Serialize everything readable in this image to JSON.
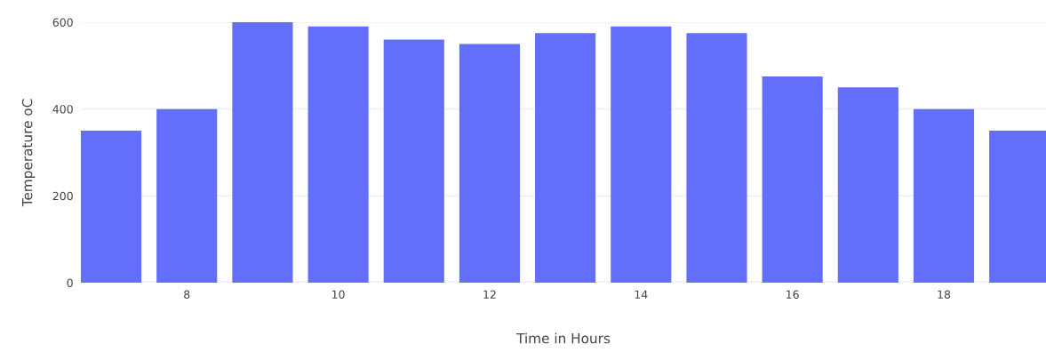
{
  "chart_data": {
    "type": "bar",
    "xlabel": "Time in Hours",
    "ylabel": "Temperature oC",
    "x": [
      7,
      8,
      9,
      10,
      11,
      12,
      13,
      14,
      15,
      16,
      17,
      18,
      19
    ],
    "series": [
      {
        "color": "#636efa",
        "values": [
          350,
          400,
          600,
          590,
          560,
          550,
          575,
          590,
          575,
          475,
          450,
          400,
          350
        ]
      }
    ],
    "xlim": [
      6.6,
      19.35
    ],
    "xticks": [
      8,
      10,
      12,
      14,
      16,
      18
    ],
    "ylim": [
      0,
      600
    ],
    "yticks": [
      0,
      200,
      400,
      600
    ],
    "grid": "y"
  }
}
